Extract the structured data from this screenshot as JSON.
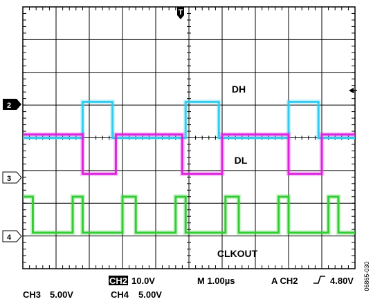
{
  "chart_data": {
    "type": "line",
    "title": "",
    "xlabel": "",
    "ylabel": "",
    "grid": true,
    "x_divisions": 10,
    "y_divisions": 8,
    "time_per_div_us": 1.0,
    "xlim_us": [
      0,
      10
    ],
    "ylim_div": [
      0,
      8
    ],
    "series": [
      {
        "name": "DH",
        "channel": 2,
        "color": "#33ccee",
        "volts_per_div": 10.0,
        "base_div": 4.0,
        "high_div": 5.1,
        "x_us": [
          0,
          1.8,
          1.8,
          2.7,
          2.7,
          4.9,
          4.9,
          5.9,
          5.9,
          8.0,
          8.0,
          8.9,
          8.9,
          10.0
        ],
        "level": [
          0,
          0,
          1,
          1,
          0,
          0,
          1,
          1,
          0,
          0,
          1,
          1,
          0,
          0
        ]
      },
      {
        "name": "DL",
        "channel": 3,
        "color": "#dd22dd",
        "volts_per_div": 5.0,
        "base_div": 2.9,
        "high_div": 4.1,
        "x_us": [
          0,
          1.8,
          1.8,
          2.8,
          2.8,
          4.8,
          4.8,
          6.0,
          6.0,
          8.0,
          8.0,
          9.0,
          9.0,
          10.0
        ],
        "level": [
          1,
          1,
          0,
          0,
          1,
          1,
          0,
          0,
          1,
          1,
          0,
          0,
          1,
          1
        ]
      },
      {
        "name": "CLKOUT",
        "channel": 4,
        "color": "#33cc33",
        "volts_per_div": 5.0,
        "base_div": 1.1,
        "high_div": 2.2,
        "x_us": [
          0,
          0.3,
          0.3,
          1.5,
          1.5,
          1.8,
          1.8,
          3.0,
          3.0,
          3.4,
          3.4,
          4.6,
          4.6,
          4.9,
          4.9,
          6.1,
          6.1,
          6.5,
          6.5,
          7.7,
          7.7,
          8.0,
          8.0,
          9.2,
          9.2,
          9.5,
          9.5,
          10.0
        ],
        "level": [
          1,
          1,
          0,
          0,
          1,
          1,
          0,
          0,
          1,
          1,
          0,
          0,
          1,
          1,
          0,
          0,
          1,
          1,
          0,
          0,
          1,
          1,
          0,
          0,
          1,
          1,
          0,
          0
        ]
      }
    ],
    "annotations": [
      "DH",
      "DL",
      "CLKOUT"
    ],
    "markers": {
      "trigger": "T",
      "ch2": "2",
      "ch3": "3",
      "ch4": "4"
    },
    "status": {
      "ch2_tag": "CH2",
      "ch2_scale": "10.0V",
      "ch3": "CH3",
      "ch3_scale": "5.00V",
      "ch4": "CH4",
      "ch4_scale": "5.00V",
      "timebase": "M 1.00µs",
      "trigger": "A  CH2",
      "trigger_level": "4.80V"
    },
    "figure_id": "06865-030"
  }
}
